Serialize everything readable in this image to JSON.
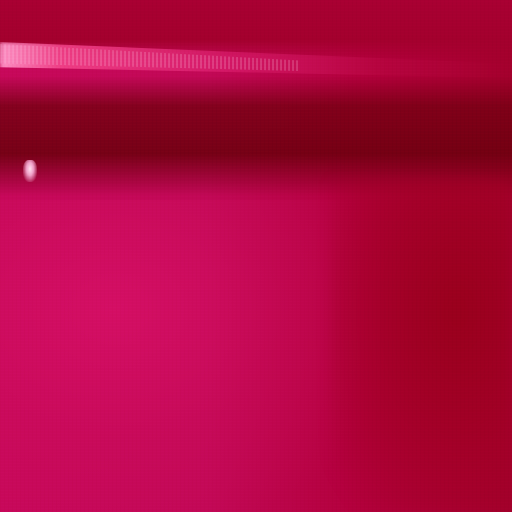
{
  "scene": {
    "colors": {
      "wall_left": "#c7085a",
      "wall_right": "#a3002c",
      "highlight": "#ff96c8",
      "shadow": "#780014"
    }
  }
}
